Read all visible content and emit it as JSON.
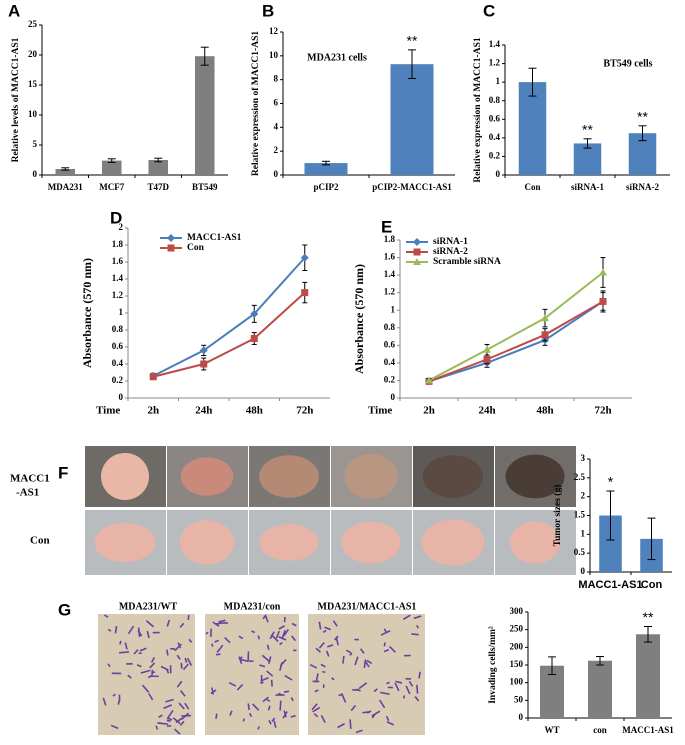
{
  "chart_data": [
    {
      "type": "bar",
      "panel": "A",
      "ylabel": "Relative levels of MACC1-AS1",
      "categories": [
        "MDA231",
        "MCF7",
        "T47D",
        "BT549"
      ],
      "values": [
        1,
        2.4,
        2.5,
        19.8
      ],
      "errors": [
        0.2,
        0.3,
        0.3,
        1.5
      ],
      "color": "#7f7f7f",
      "ylim": [
        0,
        25
      ],
      "yticks": [
        0,
        5,
        10,
        15,
        20,
        25
      ]
    },
    {
      "type": "bar",
      "panel": "B",
      "title": "MDA231 cells",
      "ylabel": "Relative expression of MACC1-AS1",
      "categories": [
        "pCIP2",
        "pCIP2-MACC1-AS1"
      ],
      "values": [
        1,
        9.3
      ],
      "errors": [
        0.15,
        1.2
      ],
      "annotations": [
        null,
        "**"
      ],
      "color": "#4f81bd",
      "ylim": [
        0,
        12
      ],
      "yticks": [
        0,
        2,
        4,
        6,
        8,
        10,
        12
      ]
    },
    {
      "type": "bar",
      "panel": "C",
      "title": "BT549 cells",
      "ylabel": "Relative expression of MACC1-AS1",
      "categories": [
        "Con",
        "siRNA-1",
        "siRNA-2"
      ],
      "values": [
        1,
        0.34,
        0.45
      ],
      "errors": [
        0.15,
        0.05,
        0.08
      ],
      "annotations": [
        null,
        "**",
        "**"
      ],
      "color": "#4f81bd",
      "ylim": [
        0,
        1.4
      ],
      "yticks": [
        0,
        0.2,
        0.4,
        0.6,
        0.8,
        1,
        1.2,
        1.4
      ]
    },
    {
      "type": "line",
      "panel": "D",
      "ylabel": "Absorbance (570 nm)",
      "xlabel": "Time",
      "categories": [
        "2h",
        "24h",
        "48h",
        "72h"
      ],
      "legend": "upper left",
      "ylim": [
        0,
        2
      ],
      "yticks": [
        0,
        0.2,
        0.4,
        0.6,
        0.8,
        1,
        1.2,
        1.4,
        1.6,
        1.8,
        2
      ],
      "series": [
        {
          "name": "MACC1-AS1",
          "color": "#4a7ebb",
          "marker": "diamond",
          "values": [
            0.26,
            0.56,
            0.99,
            1.65
          ],
          "errors": [
            0.03,
            0.06,
            0.1,
            0.15
          ]
        },
        {
          "name": "Con",
          "color": "#be4b48",
          "marker": "square",
          "values": [
            0.25,
            0.4,
            0.7,
            1.24
          ],
          "errors": [
            0.03,
            0.07,
            0.07,
            0.12
          ]
        }
      ]
    },
    {
      "type": "line",
      "panel": "E",
      "ylabel": "Absorbance (570 nm)",
      "xlabel": "Time",
      "categories": [
        "2h",
        "24h",
        "48h",
        "72h"
      ],
      "legend": "upper left",
      "ylim": [
        0,
        1.8
      ],
      "yticks": [
        0,
        0.2,
        0.4,
        0.6,
        0.8,
        1,
        1.2,
        1.4,
        1.6,
        1.8
      ],
      "series": [
        {
          "name": "siRNA-1",
          "color": "#4a7ebb",
          "marker": "diamond",
          "values": [
            0.19,
            0.4,
            0.66,
            1.1
          ],
          "errors": [
            0.02,
            0.05,
            0.06,
            0.12
          ]
        },
        {
          "name": "siRNA-2",
          "color": "#be4b48",
          "marker": "square",
          "values": [
            0.19,
            0.44,
            0.72,
            1.1
          ],
          "errors": [
            0.02,
            0.05,
            0.07,
            0.1
          ]
        },
        {
          "name": "Scramble siRNA",
          "color": "#9bbb59",
          "marker": "triangle",
          "values": [
            0.2,
            0.55,
            0.91,
            1.43
          ],
          "errors": [
            0.02,
            0.06,
            0.1,
            0.17
          ]
        }
      ]
    },
    {
      "type": "bar",
      "ylabel": "Tumor sizes (g)",
      "categories": [
        "MACC1-AS1",
        "Con"
      ],
      "values": [
        1.5,
        0.88
      ],
      "errors": [
        0.65,
        0.55
      ],
      "annotations": [
        "*",
        null
      ],
      "color": "#4f81bd",
      "ylim": [
        0,
        3
      ],
      "yticks": [
        0,
        0.5,
        1,
        1.5,
        2,
        2.5,
        3
      ]
    },
    {
      "type": "bar",
      "ylabel": "Invading cells/mm²",
      "categories": [
        "WT",
        "con",
        "MACC1-AS1"
      ],
      "values": [
        148,
        162,
        237
      ],
      "errors": [
        25,
        12,
        22
      ],
      "annotations": [
        null,
        null,
        "**"
      ],
      "color": "#7f7f7f",
      "ylim": [
        0,
        300
      ],
      "yticks": [
        0,
        50,
        100,
        150,
        200,
        250,
        300
      ]
    }
  ],
  "photos_F": {
    "letter": "F",
    "row_labels": [
      [
        "MACC1",
        "-AS1"
      ],
      [
        "Con"
      ]
    ]
  },
  "photos_G": {
    "letter": "G",
    "labels": [
      "MDA231/WT",
      "MDA231/con",
      "MDA231/MACC1-AS1"
    ]
  }
}
